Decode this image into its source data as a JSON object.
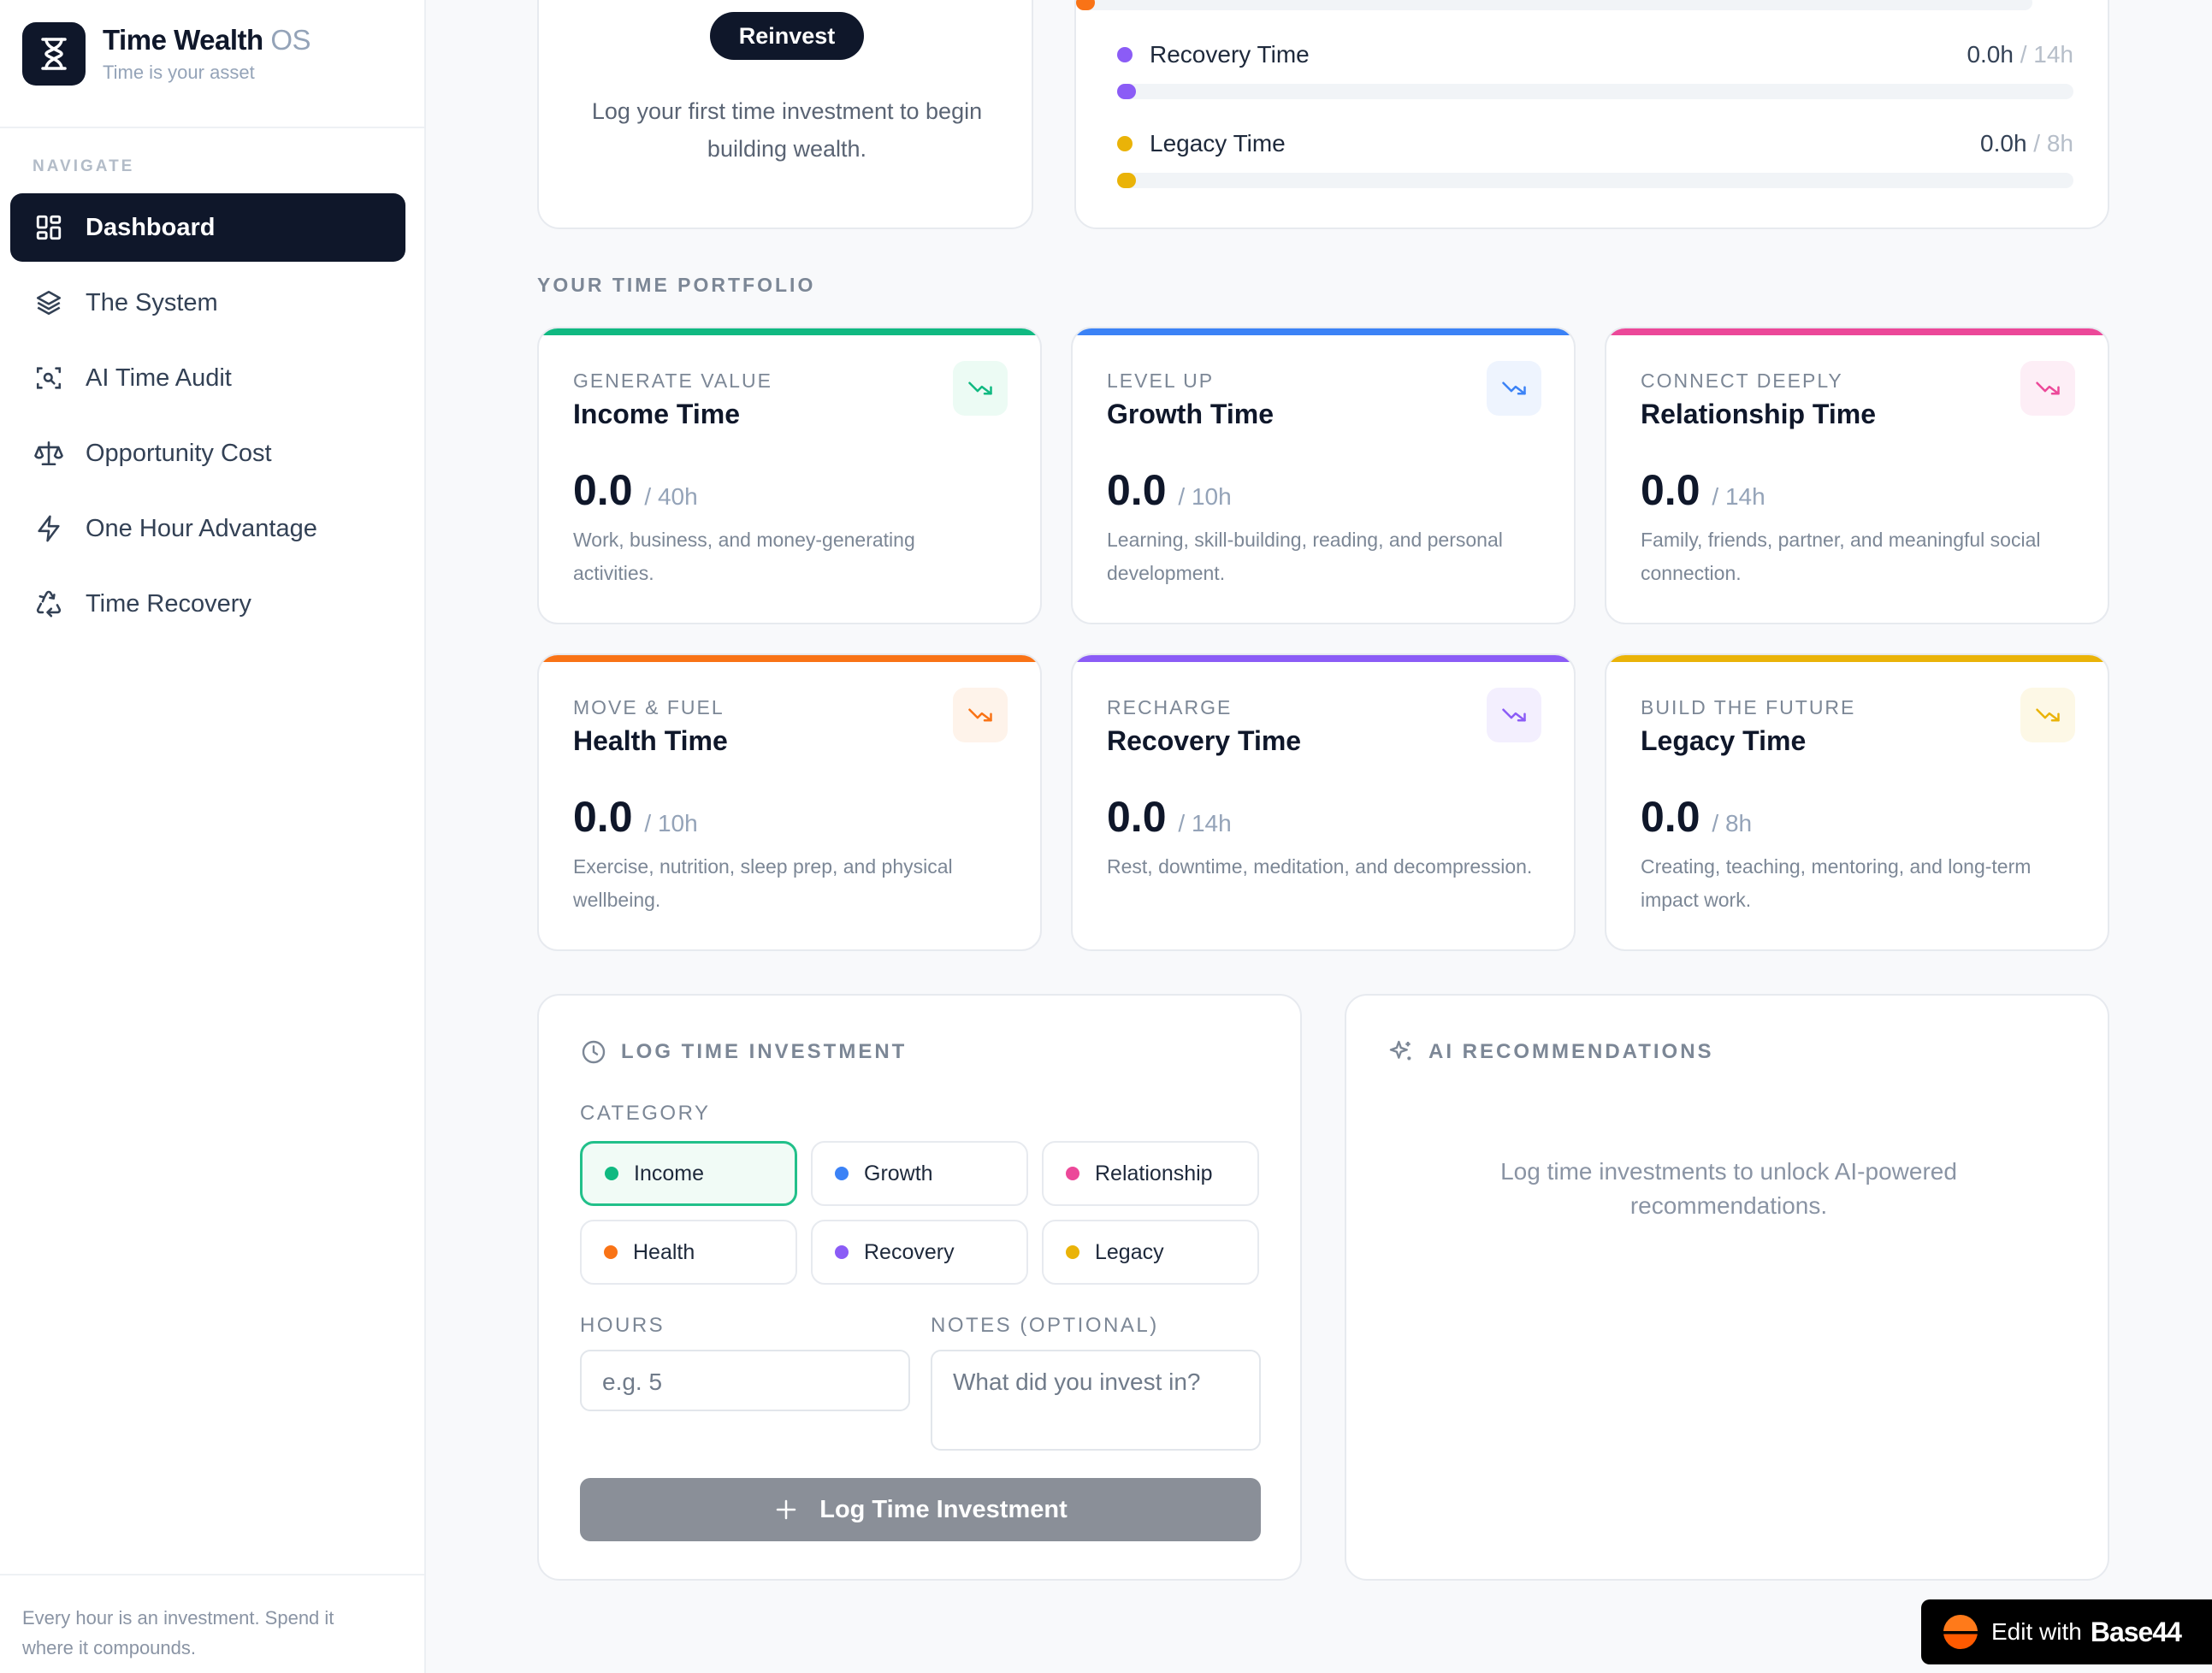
{
  "brand": {
    "title": "Time Wealth",
    "title_suffix": "OS",
    "subtitle": "Time is your asset"
  },
  "sidebar": {
    "section_label": "NAVIGATE",
    "items": [
      {
        "label": "Dashboard",
        "icon": "grid-icon",
        "active": true
      },
      {
        "label": "The System",
        "icon": "layers-icon"
      },
      {
        "label": "AI Time Audit",
        "icon": "scan-icon"
      },
      {
        "label": "Opportunity Cost",
        "icon": "scale-icon"
      },
      {
        "label": "One Hour Advantage",
        "icon": "bolt-icon"
      },
      {
        "label": "Time Recovery",
        "icon": "recycle-icon"
      }
    ],
    "footer": "Every hour is an investment. Spend it where it compounds."
  },
  "reinvest": {
    "button": "Reinvest",
    "message": "Log your first time investment to begin building wealth."
  },
  "allocation": [
    {
      "label": "Recovery Time",
      "value": "0.0h",
      "goal": "/ 14h",
      "color": "#8b5cf6"
    },
    {
      "label": "Legacy Time",
      "value": "0.0h",
      "goal": "/ 8h",
      "color": "#eab308"
    }
  ],
  "portfolio": {
    "title": "YOUR TIME PORTFOLIO",
    "cards": [
      {
        "kicker": "GENERATE VALUE",
        "name": "Income Time",
        "value": "0.0",
        "goal": "/ 40h",
        "desc": "Work, business, and money-generating activities.",
        "color": "#10b981",
        "tint": "#ecfbf4"
      },
      {
        "kicker": "LEVEL UP",
        "name": "Growth Time",
        "value": "0.0",
        "goal": "/ 10h",
        "desc": "Learning, skill-building, reading, and personal development.",
        "color": "#3b82f6",
        "tint": "#eef4fe"
      },
      {
        "kicker": "CONNECT DEEPLY",
        "name": "Relationship Time",
        "value": "0.0",
        "goal": "/ 14h",
        "desc": "Family, friends, partner, and meaningful social connection.",
        "color": "#ec4899",
        "tint": "#fdeef6"
      },
      {
        "kicker": "MOVE & FUEL",
        "name": "Health Time",
        "value": "0.0",
        "goal": "/ 10h",
        "desc": "Exercise, nutrition, sleep prep, and physical wellbeing.",
        "color": "#f97316",
        "tint": "#fef3ea"
      },
      {
        "kicker": "RECHARGE",
        "name": "Recovery Time",
        "value": "0.0",
        "goal": "/ 14h",
        "desc": "Rest, downtime, meditation, and decompression.",
        "color": "#8b5cf6",
        "tint": "#f3effe"
      },
      {
        "kicker": "BUILD THE FUTURE",
        "name": "Legacy Time",
        "value": "0.0",
        "goal": "/ 8h",
        "desc": "Creating, teaching, mentoring, and long-term impact work.",
        "color": "#eab308",
        "tint": "#fdf8e6"
      }
    ]
  },
  "log": {
    "title": "LOG TIME INVESTMENT",
    "category_label": "CATEGORY",
    "categories": [
      {
        "label": "Income",
        "color": "#10b981",
        "selected": true
      },
      {
        "label": "Growth",
        "color": "#3b82f6"
      },
      {
        "label": "Relationship",
        "color": "#ec4899"
      },
      {
        "label": "Health",
        "color": "#f97316"
      },
      {
        "label": "Recovery",
        "color": "#8b5cf6"
      },
      {
        "label": "Legacy",
        "color": "#eab308"
      }
    ],
    "hours_label": "HOURS",
    "hours_placeholder": "e.g. 5",
    "notes_label": "NOTES (OPTIONAL)",
    "notes_placeholder": "What did you invest in?",
    "submit": "Log Time Investment"
  },
  "ai": {
    "title": "AI RECOMMENDATIONS",
    "empty": "Log time investments to unlock AI-powered recommendations."
  },
  "badge": {
    "prefix": "Edit with",
    "brand": "Base44"
  }
}
